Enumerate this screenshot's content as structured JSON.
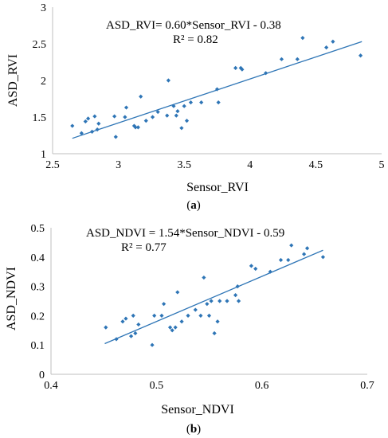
{
  "chart_data": [
    {
      "type": "scatter",
      "caption": "(a)",
      "caption_letter": "a",
      "equation": "ASD_RVI= 0.60*Sensor_RVI - 0.38",
      "r_squared": "R² = 0.82",
      "xlabel": "Sensor_RVI",
      "ylabel": "ASD_RVI",
      "xlim": [
        2.5,
        5
      ],
      "ylim": [
        1,
        3
      ],
      "xticks": [
        2.5,
        3,
        3.5,
        4,
        4.5,
        5
      ],
      "yticks": [
        1,
        1.5,
        2,
        2.5,
        3
      ],
      "xtick_labels": [
        "2.5",
        "3",
        "3.5",
        "4",
        "4.5",
        "5"
      ],
      "ytick_labels": [
        "1",
        "1.5",
        "2",
        "2.5",
        "3"
      ],
      "trendline": {
        "slope": 0.6,
        "intercept": -0.38,
        "x_range": [
          2.65,
          4.85
        ]
      },
      "marker_color": "#2e75b6",
      "line_color": "#2e75b6",
      "points": [
        [
          2.65,
          1.38
        ],
        [
          2.72,
          1.28
        ],
        [
          2.75,
          1.44
        ],
        [
          2.77,
          1.48
        ],
        [
          2.8,
          1.3
        ],
        [
          2.82,
          1.51
        ],
        [
          2.84,
          1.33
        ],
        [
          2.85,
          1.41
        ],
        [
          2.97,
          1.51
        ],
        [
          2.98,
          1.23
        ],
        [
          3.05,
          1.5
        ],
        [
          3.06,
          1.63
        ],
        [
          3.12,
          1.38
        ],
        [
          3.13,
          1.36
        ],
        [
          3.15,
          1.36
        ],
        [
          3.17,
          1.78
        ],
        [
          3.21,
          1.45
        ],
        [
          3.26,
          1.5
        ],
        [
          3.3,
          1.57
        ],
        [
          3.37,
          1.52
        ],
        [
          3.38,
          2.0
        ],
        [
          3.42,
          1.65
        ],
        [
          3.44,
          1.52
        ],
        [
          3.45,
          1.58
        ],
        [
          3.48,
          1.35
        ],
        [
          3.5,
          1.65
        ],
        [
          3.52,
          1.45
        ],
        [
          3.55,
          1.7
        ],
        [
          3.63,
          1.7
        ],
        [
          3.75,
          1.88
        ],
        [
          3.76,
          1.7
        ],
        [
          3.89,
          2.17
        ],
        [
          3.93,
          2.17
        ],
        [
          3.94,
          2.15
        ],
        [
          4.12,
          2.1
        ],
        [
          4.24,
          2.29
        ],
        [
          4.36,
          2.29
        ],
        [
          4.4,
          2.58
        ],
        [
          4.58,
          2.45
        ],
        [
          4.63,
          2.53
        ],
        [
          4.84,
          2.34
        ]
      ]
    },
    {
      "type": "scatter",
      "caption": "(b)",
      "caption_letter": "b",
      "equation": "ASD_NDVI = 1.54*Sensor_NDVI - 0.59",
      "r_squared": "R² = 0.77",
      "xlabel": "Sensor_NDVI",
      "ylabel": "ASD_NDVI",
      "xlim": [
        0.4,
        0.7
      ],
      "ylim": [
        0,
        0.5
      ],
      "xticks": [
        0.4,
        0.5,
        0.6,
        0.7
      ],
      "yticks": [
        0,
        0.1,
        0.2,
        0.3,
        0.4,
        0.5
      ],
      "xtick_labels": [
        "0.4",
        "0.5",
        "0.6",
        "0.7"
      ],
      "ytick_labels": [
        "0",
        "0.1",
        "0.2",
        "0.3",
        "0.4",
        "0.5"
      ],
      "trendline": {
        "slope": 1.54,
        "intercept": -0.59,
        "x_range": [
          0.451,
          0.658
        ]
      },
      "marker_color": "#2e75b6",
      "line_color": "#2e75b6",
      "points": [
        [
          0.452,
          0.16
        ],
        [
          0.462,
          0.12
        ],
        [
          0.468,
          0.18
        ],
        [
          0.471,
          0.19
        ],
        [
          0.476,
          0.13
        ],
        [
          0.478,
          0.2
        ],
        [
          0.48,
          0.14
        ],
        [
          0.483,
          0.17
        ],
        [
          0.496,
          0.1
        ],
        [
          0.498,
          0.2
        ],
        [
          0.505,
          0.2
        ],
        [
          0.507,
          0.24
        ],
        [
          0.513,
          0.16
        ],
        [
          0.515,
          0.15
        ],
        [
          0.518,
          0.16
        ],
        [
          0.52,
          0.28
        ],
        [
          0.524,
          0.18
        ],
        [
          0.53,
          0.2
        ],
        [
          0.537,
          0.22
        ],
        [
          0.542,
          0.2
        ],
        [
          0.545,
          0.33
        ],
        [
          0.548,
          0.24
        ],
        [
          0.55,
          0.2
        ],
        [
          0.552,
          0.25
        ],
        [
          0.555,
          0.14
        ],
        [
          0.558,
          0.18
        ],
        [
          0.56,
          0.25
        ],
        [
          0.567,
          0.25
        ],
        [
          0.575,
          0.27
        ],
        [
          0.577,
          0.3
        ],
        [
          0.578,
          0.25
        ],
        [
          0.59,
          0.37
        ],
        [
          0.594,
          0.36
        ],
        [
          0.608,
          0.35
        ],
        [
          0.618,
          0.39
        ],
        [
          0.625,
          0.39
        ],
        [
          0.628,
          0.44
        ],
        [
          0.64,
          0.41
        ],
        [
          0.643,
          0.43
        ],
        [
          0.658,
          0.4
        ]
      ]
    }
  ]
}
